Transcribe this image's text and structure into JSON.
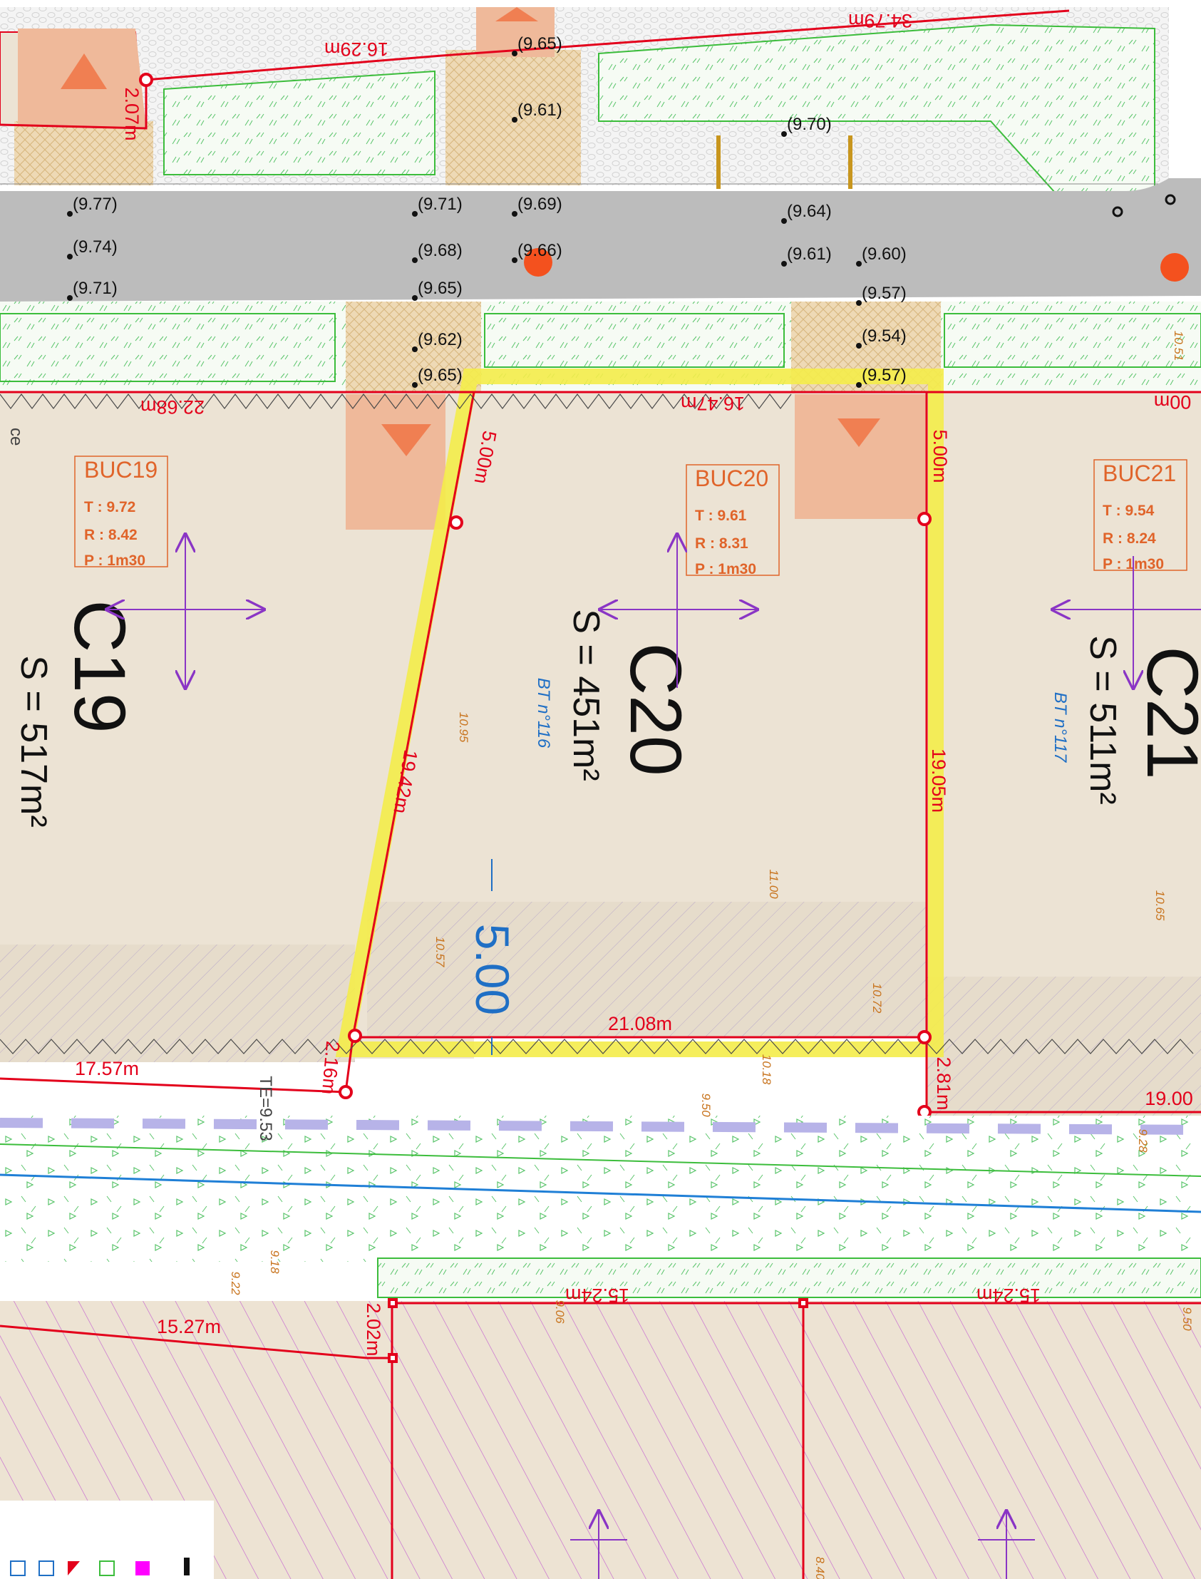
{
  "colors": {
    "parcel": "#ece3d4",
    "parcel_boundary": "#e3001b",
    "road": "#bcbcbc",
    "green_strip": "#3cbd3c",
    "highlight": "#f4ec4a",
    "access_zone": "#efb99a",
    "access_arrow": "#f07f52",
    "cross_arrow": "#8a35c5",
    "buc_label": "#e0642a",
    "blue_label": "#1f6fc5",
    "paving": "#e8d6b3"
  },
  "spot_heights": [
    "(9.65)",
    "(9.61)",
    "(9.70)",
    "(9.77)",
    "(9.71)",
    "(9.69)",
    "(9.64)",
    "(9.74)",
    "(9.68)",
    "(9.66)",
    "(9.61)",
    "(9.60)",
    "(9.71)",
    "(9.65)",
    "(9.57)",
    "(9.62)",
    "(9.54)",
    "(9.65)",
    "(9.57)"
  ],
  "dimensions": {
    "d_16_29": "16.29m",
    "d_2_07": "2.07m",
    "d_22_68": "22.68m",
    "d_16_47": "16.47m",
    "d_00m_right": "00m",
    "d_5_00_left": "5.00m",
    "d_5_00_right": "5.00m",
    "d_19_42": "19.42m",
    "d_19_05": "19.05m",
    "d_21_08": "21.08m",
    "d_2_16": "2.16m",
    "d_2_81": "2.81m",
    "d_17_57": "17.57m",
    "d_19_00": "19.00",
    "d_15_24_a": "15.24m",
    "d_15_24_b": "15.24m",
    "d_15_27": "15.27m",
    "d_2_02": "2.02m",
    "d_top_partial": "34.79m"
  },
  "lots": [
    {
      "id": "C19",
      "area": "S = 517m²"
    },
    {
      "id": "C20",
      "area": "S = 451m²"
    },
    {
      "id": "C21",
      "area": "S = 511m²"
    }
  ],
  "bt_labels": [
    "BT n°116",
    "BT n°117"
  ],
  "buc": [
    {
      "title": "BUC19",
      "t": "T : 9.72",
      "r": "R : 8.42",
      "p": "P : 1m30"
    },
    {
      "title": "BUC20",
      "t": "T : 9.61",
      "r": "R : 8.31",
      "p": "P : 1m30"
    },
    {
      "title": "BUC21",
      "t": "T : 9.54",
      "r": "R : 8.24",
      "p": "P : 1m30"
    }
  ],
  "setback": "5.00",
  "ground_levels": [
    "10.95",
    "11.00",
    "10.57",
    "10.72",
    "10.65",
    "10.18",
    "9.50",
    "9.28",
    "9.18",
    "9.22",
    "9.06",
    "10.51",
    "9.50",
    "8.40"
  ],
  "te_label": "TE=9.53",
  "edge_text": "ce"
}
